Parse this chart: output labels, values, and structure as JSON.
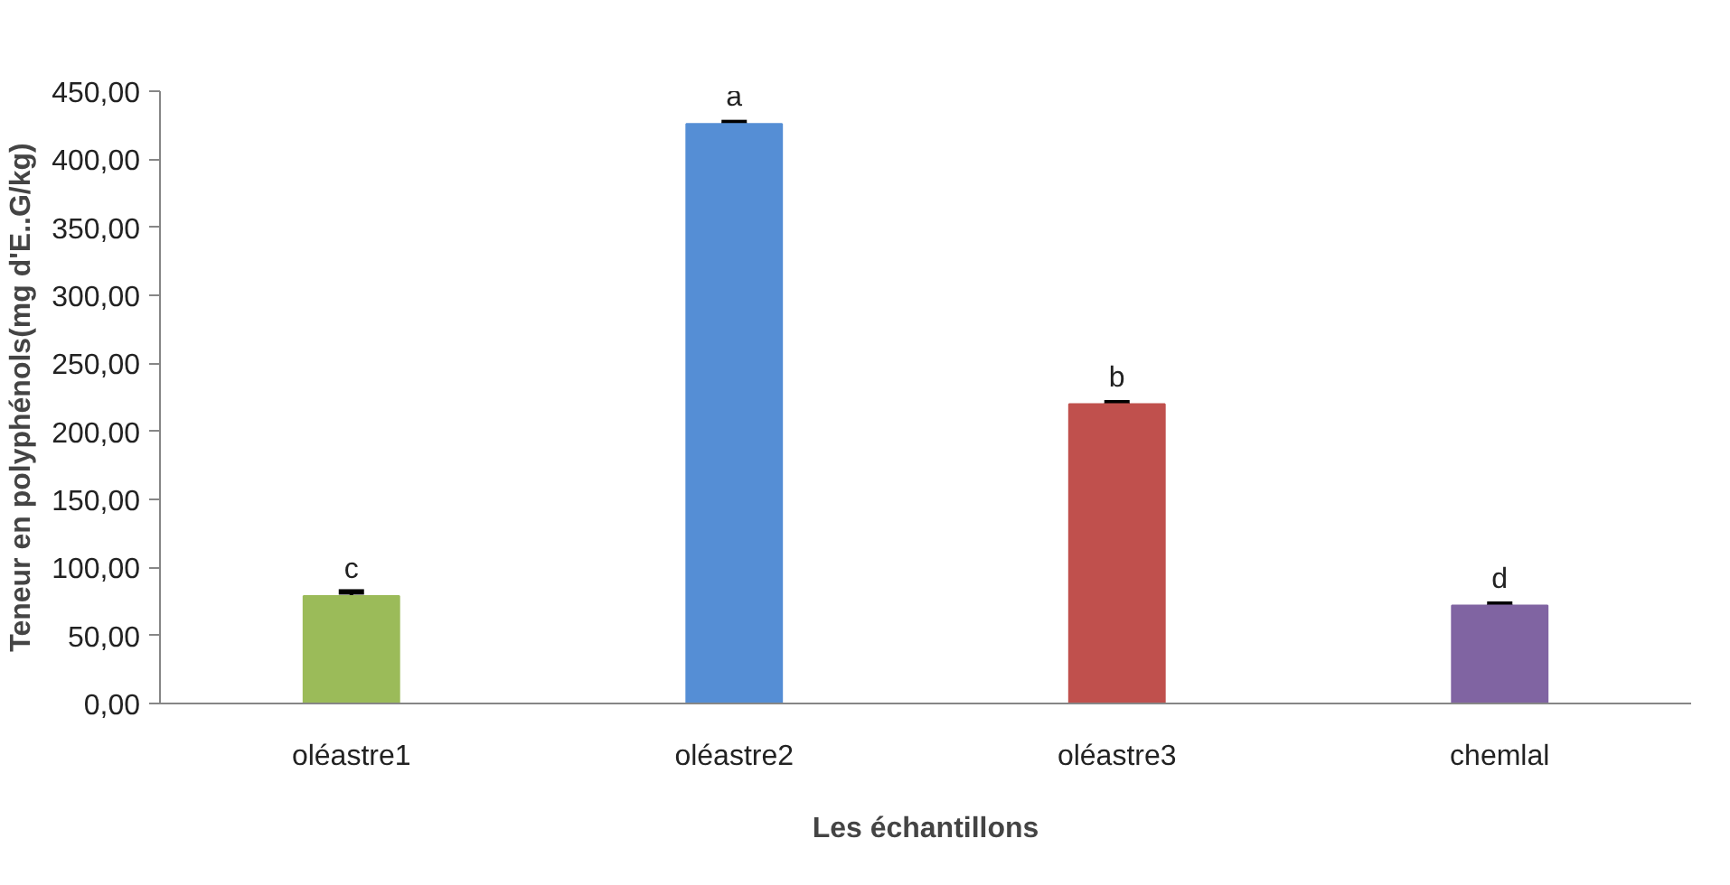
{
  "chart_data": {
    "type": "bar",
    "xlabel": "Les échantillons",
    "ylabel": "Teneur en polyphénols(mg d'E..G/kg)",
    "categories": [
      "oléastre1",
      "oléastre2",
      "oléastre3",
      "chemlal"
    ],
    "values": [
      79,
      426,
      220,
      72
    ],
    "colors": [
      "#9bbb59",
      "#558ed5",
      "#c0504d",
      "#8064a2"
    ],
    "errors": [
      3,
      1,
      1,
      1
    ],
    "ylim": [
      0,
      450
    ],
    "yticks": [
      {
        "value": 0,
        "label": "0,00"
      },
      {
        "value": 50,
        "label": "50,00"
      },
      {
        "value": 100,
        "label": "100,00"
      },
      {
        "value": 150,
        "label": "150,00"
      },
      {
        "value": 200,
        "label": "200,00"
      },
      {
        "value": 250,
        "label": "250,00"
      },
      {
        "value": 300,
        "label": "300,00"
      },
      {
        "value": 350,
        "label": "350,00"
      },
      {
        "value": 400,
        "label": "400,00"
      },
      {
        "value": 450,
        "label": "450,00"
      }
    ],
    "annotations": [
      {
        "text": "c",
        "x": "oléastre1",
        "y": 79
      },
      {
        "text": "a",
        "x": "oléastre2",
        "y": 426
      },
      {
        "text": "b",
        "x": "oléastre3",
        "y": 220
      },
      {
        "text": "d",
        "x": "chemlal",
        "y": 72
      }
    ],
    "grid": false
  }
}
